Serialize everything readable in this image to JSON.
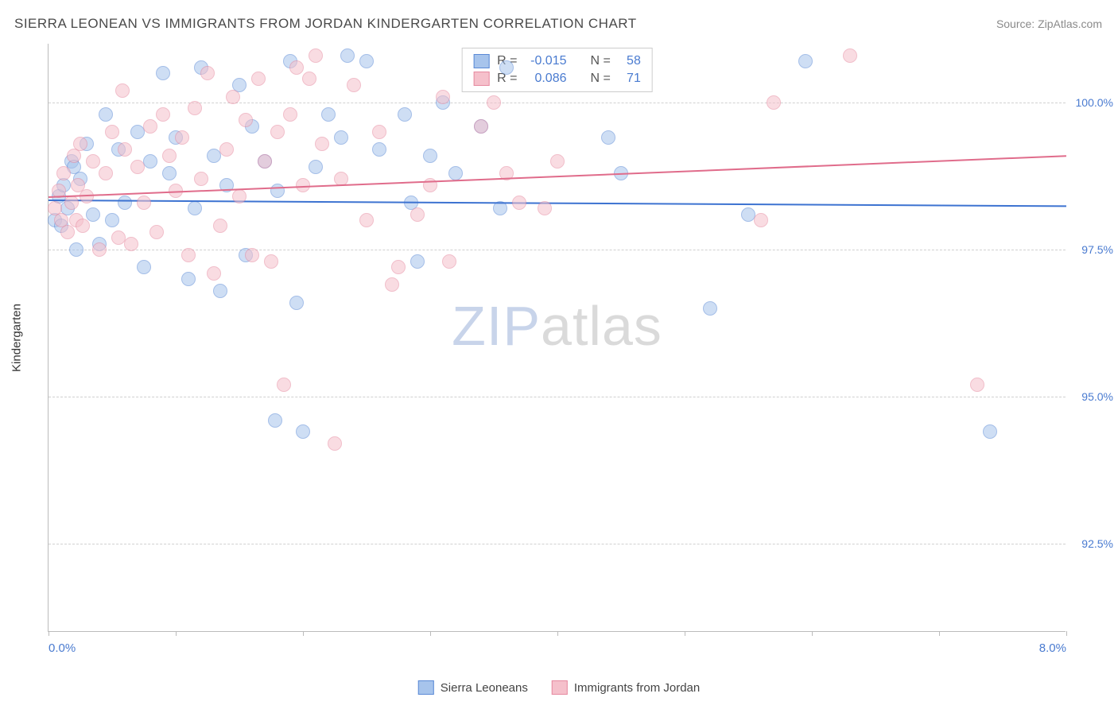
{
  "title": "SIERRA LEONEAN VS IMMIGRANTS FROM JORDAN KINDERGARTEN CORRELATION CHART",
  "source": "Source: ZipAtlas.com",
  "watermark": {
    "part1": "ZIP",
    "part2": "atlas"
  },
  "chart": {
    "type": "scatter",
    "xlim": [
      0.0,
      8.0
    ],
    "ylim": [
      91.0,
      101.0
    ],
    "x_ticks": [
      0.0,
      1.0,
      2.0,
      3.0,
      4.0,
      5.0,
      6.0,
      7.0,
      8.0
    ],
    "x_tick_labels_shown": {
      "0": "0.0%",
      "8": "8.0%"
    },
    "y_ticks": [
      92.5,
      95.0,
      97.5,
      100.0
    ],
    "y_tick_labels": [
      "92.5%",
      "95.0%",
      "97.5%",
      "100.0%"
    ],
    "y_axis_label": "Kindergarten",
    "plot_background": "#ffffff",
    "grid_color": "#d0d0d0",
    "axis_color": "#bbbbbb",
    "label_color": "#4a7bd0",
    "point_radius": 9,
    "point_opacity": 0.55,
    "series": [
      {
        "name": "Sierra Leoneans",
        "fill": "#a7c4ec",
        "stroke": "#5b8ad6",
        "r_label": "R =",
        "r_value": "-0.015",
        "n_label": "N =",
        "n_value": "58",
        "trend": {
          "y_start": 98.35,
          "y_end": 98.25,
          "color": "#3d73d1"
        },
        "points": [
          [
            0.05,
            98.0
          ],
          [
            0.08,
            98.4
          ],
          [
            0.1,
            97.9
          ],
          [
            0.12,
            98.6
          ],
          [
            0.15,
            98.2
          ],
          [
            0.18,
            99.0
          ],
          [
            0.2,
            98.9
          ],
          [
            0.22,
            97.5
          ],
          [
            0.25,
            98.7
          ],
          [
            0.3,
            99.3
          ],
          [
            0.35,
            98.1
          ],
          [
            0.4,
            97.6
          ],
          [
            0.45,
            99.8
          ],
          [
            0.5,
            98.0
          ],
          [
            0.55,
            99.2
          ],
          [
            0.6,
            98.3
          ],
          [
            0.7,
            99.5
          ],
          [
            0.75,
            97.2
          ],
          [
            0.8,
            99.0
          ],
          [
            0.9,
            100.5
          ],
          [
            0.95,
            98.8
          ],
          [
            1.0,
            99.4
          ],
          [
            1.1,
            97.0
          ],
          [
            1.15,
            98.2
          ],
          [
            1.2,
            100.6
          ],
          [
            1.3,
            99.1
          ],
          [
            1.35,
            96.8
          ],
          [
            1.4,
            98.6
          ],
          [
            1.5,
            100.3
          ],
          [
            1.55,
            97.4
          ],
          [
            1.6,
            99.6
          ],
          [
            1.7,
            99.0
          ],
          [
            1.78,
            94.6
          ],
          [
            1.8,
            98.5
          ],
          [
            1.9,
            100.7
          ],
          [
            1.95,
            96.6
          ],
          [
            2.0,
            94.4
          ],
          [
            2.1,
            98.9
          ],
          [
            2.2,
            99.8
          ],
          [
            2.3,
            99.4
          ],
          [
            2.35,
            100.8
          ],
          [
            2.5,
            100.7
          ],
          [
            2.6,
            99.2
          ],
          [
            2.8,
            99.8
          ],
          [
            2.85,
            98.3
          ],
          [
            2.9,
            97.3
          ],
          [
            3.0,
            99.1
          ],
          [
            3.1,
            100.0
          ],
          [
            3.2,
            98.8
          ],
          [
            3.4,
            99.6
          ],
          [
            3.55,
            98.2
          ],
          [
            3.6,
            100.6
          ],
          [
            4.4,
            99.4
          ],
          [
            4.5,
            98.8
          ],
          [
            5.2,
            96.5
          ],
          [
            5.5,
            98.1
          ],
          [
            5.95,
            100.7
          ],
          [
            7.4,
            94.4
          ]
        ]
      },
      {
        "name": "Immigrants from Jordan",
        "fill": "#f5c0cb",
        "stroke": "#e68aa0",
        "r_label": "R =",
        "r_value": "0.086",
        "n_label": "N =",
        "n_value": "71",
        "trend": {
          "y_start": 98.4,
          "y_end": 99.1,
          "color": "#e06c8b"
        },
        "points": [
          [
            0.05,
            98.2
          ],
          [
            0.08,
            98.5
          ],
          [
            0.1,
            98.0
          ],
          [
            0.12,
            98.8
          ],
          [
            0.15,
            97.8
          ],
          [
            0.18,
            98.3
          ],
          [
            0.2,
            99.1
          ],
          [
            0.22,
            98.0
          ],
          [
            0.23,
            98.6
          ],
          [
            0.25,
            99.3
          ],
          [
            0.27,
            97.9
          ],
          [
            0.3,
            98.4
          ],
          [
            0.35,
            99.0
          ],
          [
            0.4,
            97.5
          ],
          [
            0.45,
            98.8
          ],
          [
            0.5,
            99.5
          ],
          [
            0.55,
            97.7
          ],
          [
            0.58,
            100.2
          ],
          [
            0.6,
            99.2
          ],
          [
            0.65,
            97.6
          ],
          [
            0.7,
            98.9
          ],
          [
            0.75,
            98.3
          ],
          [
            0.8,
            99.6
          ],
          [
            0.85,
            97.8
          ],
          [
            0.9,
            99.8
          ],
          [
            0.95,
            99.1
          ],
          [
            1.0,
            98.5
          ],
          [
            1.05,
            99.4
          ],
          [
            1.1,
            97.4
          ],
          [
            1.15,
            99.9
          ],
          [
            1.2,
            98.7
          ],
          [
            1.25,
            100.5
          ],
          [
            1.3,
            97.1
          ],
          [
            1.35,
            97.9
          ],
          [
            1.4,
            99.2
          ],
          [
            1.45,
            100.1
          ],
          [
            1.5,
            98.4
          ],
          [
            1.55,
            99.7
          ],
          [
            1.6,
            97.4
          ],
          [
            1.65,
            100.4
          ],
          [
            1.7,
            99.0
          ],
          [
            1.75,
            97.3
          ],
          [
            1.8,
            99.5
          ],
          [
            1.85,
            95.2
          ],
          [
            1.9,
            99.8
          ],
          [
            1.95,
            100.6
          ],
          [
            2.0,
            98.6
          ],
          [
            2.05,
            100.4
          ],
          [
            2.1,
            100.8
          ],
          [
            2.15,
            99.3
          ],
          [
            2.25,
            94.2
          ],
          [
            2.3,
            98.7
          ],
          [
            2.4,
            100.3
          ],
          [
            2.5,
            98.0
          ],
          [
            2.6,
            99.5
          ],
          [
            2.7,
            96.9
          ],
          [
            2.75,
            97.2
          ],
          [
            2.9,
            98.1
          ],
          [
            3.0,
            98.6
          ],
          [
            3.1,
            100.1
          ],
          [
            3.15,
            97.3
          ],
          [
            3.4,
            99.6
          ],
          [
            3.5,
            100.0
          ],
          [
            3.6,
            98.8
          ],
          [
            3.7,
            98.3
          ],
          [
            3.9,
            98.2
          ],
          [
            4.0,
            99.0
          ],
          [
            5.6,
            98.0
          ],
          [
            5.7,
            100.0
          ],
          [
            6.3,
            100.8
          ],
          [
            7.3,
            95.2
          ]
        ]
      }
    ]
  },
  "legend_bottom": [
    {
      "label": "Sierra Leoneans",
      "fill": "#a7c4ec",
      "stroke": "#5b8ad6"
    },
    {
      "label": "Immigrants from Jordan",
      "fill": "#f5c0cb",
      "stroke": "#e68aa0"
    }
  ]
}
